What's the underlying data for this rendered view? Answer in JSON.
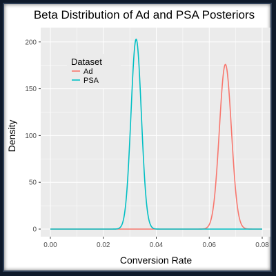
{
  "chart_data": {
    "type": "line",
    "title": "Beta Distribution of Ad and PSA Posteriors",
    "xlabel": "Conversion Rate",
    "ylabel": "Density",
    "xlim": [
      0.0,
      0.08
    ],
    "ylim": [
      0,
      205
    ],
    "x_ticks": [
      0.0,
      0.02,
      0.04,
      0.06,
      0.08
    ],
    "x_tick_labels": [
      "0.00",
      "0.02",
      "0.04",
      "0.06",
      "0.08"
    ],
    "y_ticks": [
      0,
      50,
      100,
      150,
      200
    ],
    "y_tick_labels": [
      "0",
      "50",
      "100",
      "150",
      "200"
    ],
    "grid": true,
    "legend": {
      "title": "Dataset",
      "placement": "top-left"
    },
    "series": [
      {
        "name": "Ad",
        "color": "#f8766d",
        "peak_x": 0.0661,
        "peak_density": 176,
        "sd": 0.00227
      },
      {
        "name": "PSA",
        "color": "#00bfc4",
        "peak_x": 0.0324,
        "peak_density": 203,
        "sd": 0.00196
      }
    ]
  },
  "colors": {
    "panel_background": "#ebebeb",
    "grid_major": "#ffffff",
    "page_background": "#0f1a2b"
  }
}
